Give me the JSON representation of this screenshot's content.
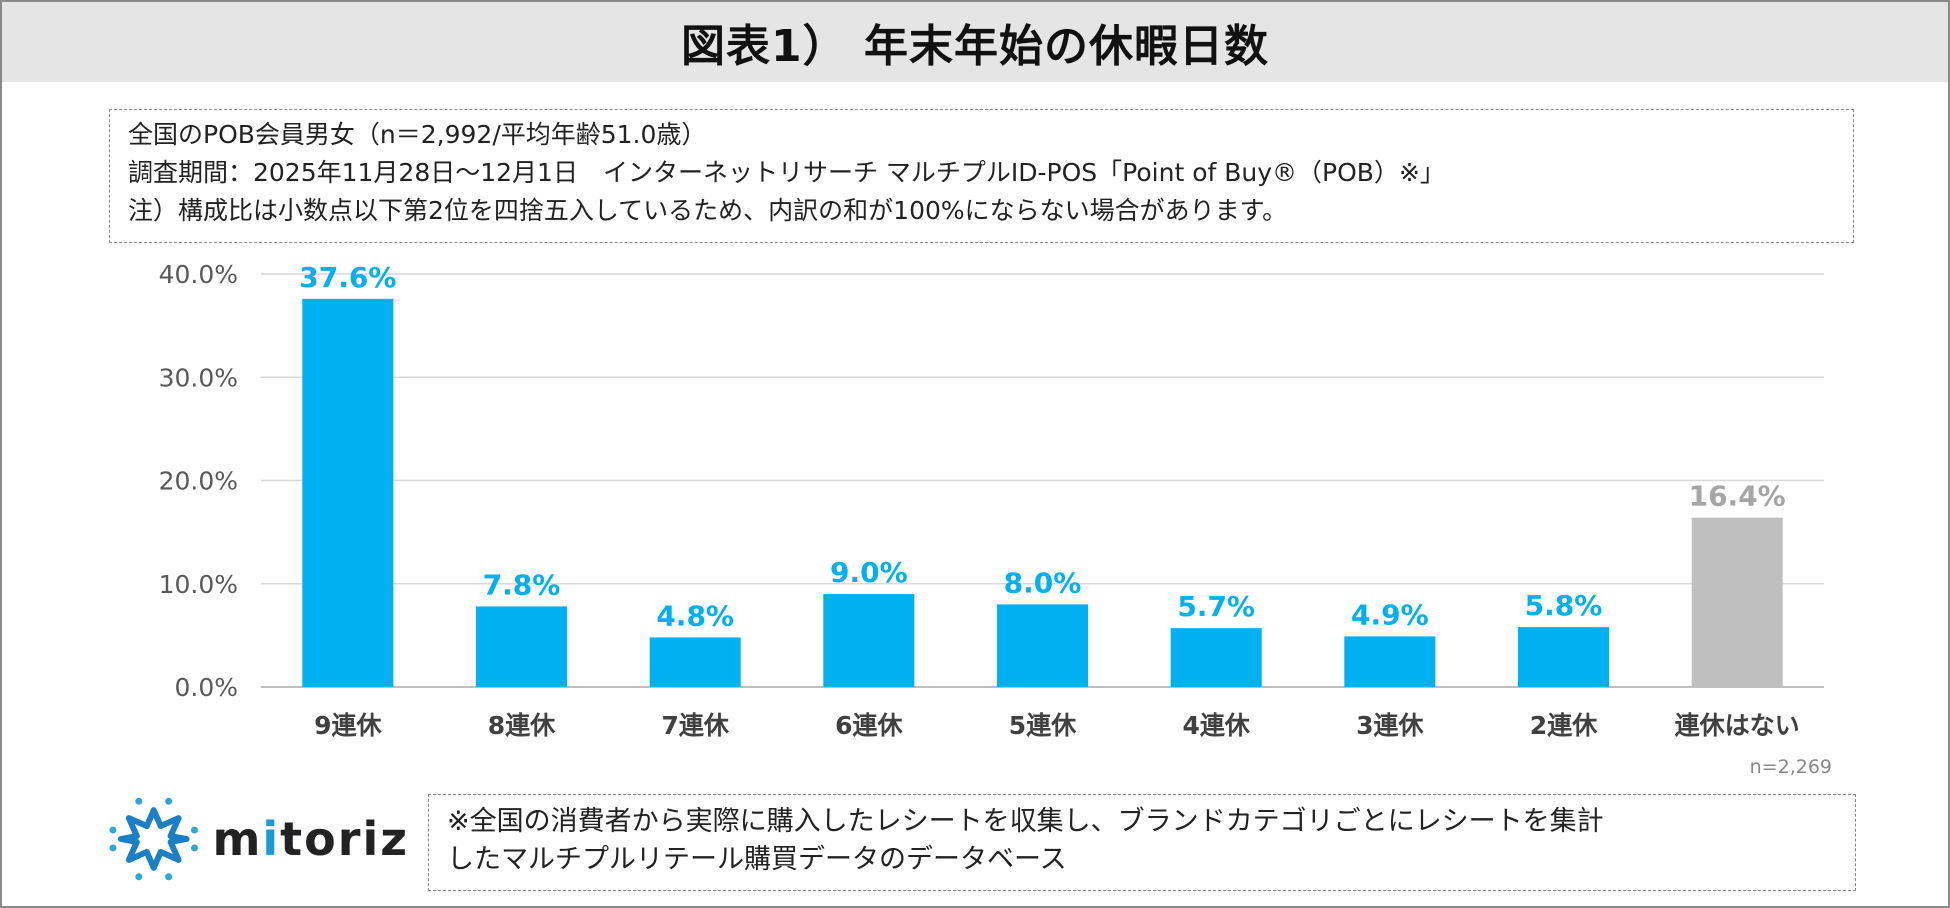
{
  "title": "図表1） 年末年始の休暇日数",
  "info": {
    "line1": "全国のPOB会員男女（n＝2,992/平均年齢51.0歳）",
    "line2": "調査期間：2025年11月28日～12月1日　インターネットリサーチ マルチプルID-POS「Point of Buy®（POB）※」",
    "line3": "注）構成比は小数点以下第2位を四捨五入しているため、内訳の和が100%にならない場合があります。"
  },
  "chart_data": {
    "type": "bar",
    "categories": [
      "9連休",
      "8連休",
      "7連休",
      "6連休",
      "5連休",
      "4連休",
      "3連休",
      "2連休",
      "連休はない"
    ],
    "values": [
      37.6,
      7.8,
      4.8,
      9.0,
      8.0,
      5.7,
      4.9,
      5.8,
      16.4
    ],
    "data_labels": [
      "37.6%",
      "7.8%",
      "4.8%",
      "9.0%",
      "8.0%",
      "5.7%",
      "4.9%",
      "5.8%",
      "16.4%"
    ],
    "bar_colors": [
      "#00b0f0",
      "#00b0f0",
      "#00b0f0",
      "#00b0f0",
      "#00b0f0",
      "#00b0f0",
      "#00b0f0",
      "#00b0f0",
      "#bfbfbf"
    ],
    "label_colors": [
      "#00b0f0",
      "#00b0f0",
      "#00b0f0",
      "#00b0f0",
      "#00b0f0",
      "#00b0f0",
      "#00b0f0",
      "#00b0f0",
      "#a6a6a6"
    ],
    "ylim": [
      0,
      40
    ],
    "yticks": [
      "0.0%",
      "10.0%",
      "20.0%",
      "30.0%",
      "40.0%"
    ],
    "grid": true,
    "xlabel": "",
    "ylabel": "",
    "n_note": "n=2,269"
  },
  "logo": {
    "text_pre": "m",
    "text_i": "i",
    "text_post": "toriz",
    "full": "mitoriz"
  },
  "footnote": {
    "line1": "※全国の消費者から実際に購入したレシートを収集し、ブランドカテゴリごとにレシートを集計",
    "line2": "したマルチプルリテール購買データのデータベース"
  }
}
